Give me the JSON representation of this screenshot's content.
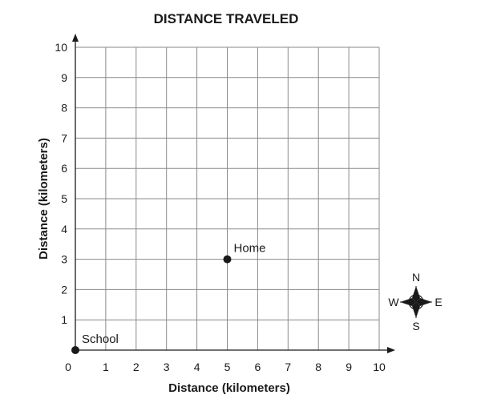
{
  "chart_data": {
    "type": "scatter",
    "title": "DISTANCE TRAVELED",
    "xlabel": "Distance (kilometers)",
    "ylabel": "Distance (kilometers)",
    "xlim": [
      0,
      10
    ],
    "ylim": [
      0,
      10
    ],
    "x_ticks": [
      "1",
      "2",
      "3",
      "4",
      "5",
      "6",
      "7",
      "8",
      "9",
      "10"
    ],
    "y_ticks": [
      "1",
      "2",
      "3",
      "4",
      "5",
      "6",
      "7",
      "8",
      "9",
      "10"
    ],
    "origin_label": "0",
    "grid": true,
    "points": [
      {
        "label": "School",
        "x": 0,
        "y": 0
      },
      {
        "label": "Home",
        "x": 5,
        "y": 3
      }
    ]
  },
  "compass": {
    "icon": "compass-rose-icon",
    "north": "N",
    "south": "S",
    "east": "E",
    "west": "W"
  }
}
